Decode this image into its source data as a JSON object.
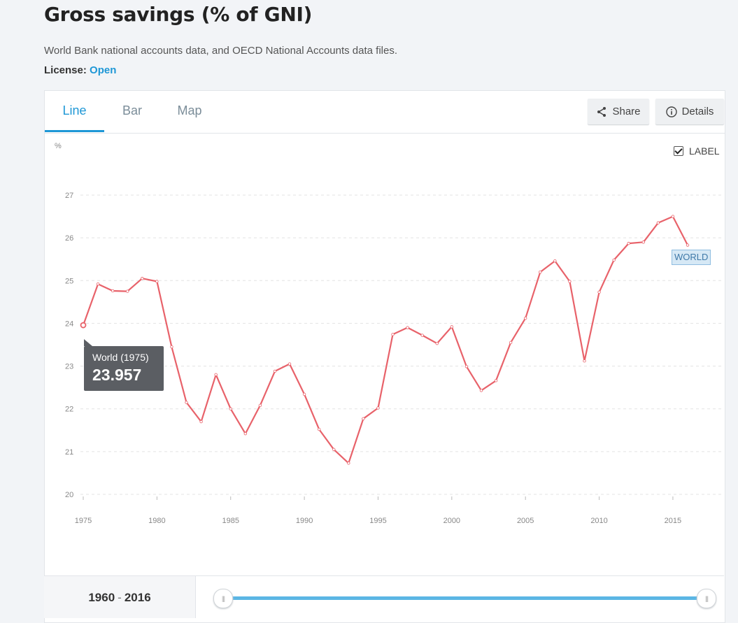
{
  "page": {
    "title": "Gross savings (% of GNI)",
    "source": "World Bank national accounts data, and OECD National Accounts data files.",
    "license_label": "License:",
    "license_value": "Open"
  },
  "tabs": [
    {
      "label": "Line",
      "active": true
    },
    {
      "label": "Bar",
      "active": false
    },
    {
      "label": "Map",
      "active": false
    }
  ],
  "actions": {
    "share": "Share",
    "details": "Details"
  },
  "label_toggle": {
    "text": "LABEL",
    "checked": true
  },
  "tooltip": {
    "title": "World (1975)",
    "value": "23.957"
  },
  "series_tag": "WORLD",
  "range": {
    "start": "1960",
    "sep": "-",
    "end": "2016"
  },
  "colors": {
    "line": "#e8626a",
    "accent": "#1e97d6",
    "grid": "#e3e3e3",
    "slider": "#5bb6e4"
  },
  "chart_data": {
    "type": "line",
    "title": "",
    "ylabel": "%",
    "xlim": [
      1975,
      2016
    ],
    "ylim": [
      20,
      27
    ],
    "yticks": [
      20,
      21,
      22,
      23,
      24,
      25,
      26,
      27
    ],
    "xticks": [
      1975,
      1980,
      1985,
      1990,
      1995,
      2000,
      2005,
      2010,
      2015
    ],
    "grid": true,
    "series": [
      {
        "name": "WORLD",
        "x": [
          1975,
          1976,
          1977,
          1978,
          1979,
          1980,
          1981,
          1982,
          1983,
          1984,
          1985,
          1986,
          1987,
          1988,
          1989,
          1990,
          1991,
          1992,
          1993,
          1994,
          1995,
          1996,
          1997,
          1998,
          1999,
          2000,
          2001,
          2002,
          2003,
          2004,
          2005,
          2006,
          2007,
          2008,
          2009,
          2010,
          2011,
          2012,
          2013,
          2014,
          2015,
          2016
        ],
        "values": [
          23.957,
          24.92,
          24.76,
          24.75,
          25.05,
          24.98,
          23.45,
          22.15,
          21.7,
          22.8,
          22.0,
          21.42,
          22.08,
          22.88,
          23.05,
          22.34,
          21.52,
          21.05,
          20.73,
          21.77,
          22.02,
          23.74,
          23.9,
          23.72,
          23.53,
          23.92,
          22.99,
          22.43,
          22.66,
          23.55,
          24.12,
          25.2,
          25.46,
          24.98,
          23.12,
          24.73,
          25.48,
          25.87,
          25.9,
          26.35,
          26.5,
          25.83
        ]
      }
    ]
  }
}
